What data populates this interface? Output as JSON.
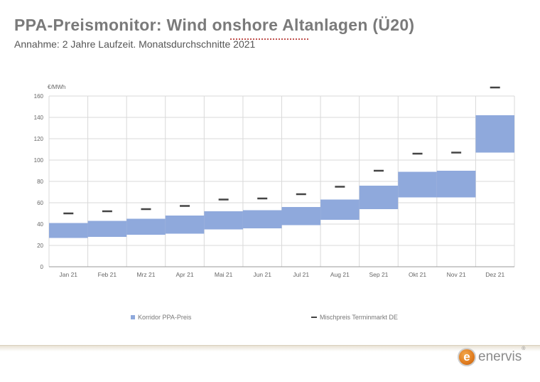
{
  "header": {
    "title": "PPA-Preismonitor: Wind onshore Altanlagen (Ü20)",
    "subtitle": "Annahme: 2 Jahre Laufzeit. Monatsdurchschnitte 2021"
  },
  "colors": {
    "band": "#8fa9dc",
    "marker": "#444444",
    "grid": "#d9d9d9"
  },
  "chart_data": {
    "type": "bar",
    "title": "",
    "ylabel": "€/MWh",
    "xlabel": "",
    "ylim": [
      0,
      160
    ],
    "yticks": [
      0,
      20,
      40,
      60,
      80,
      100,
      120,
      140,
      160
    ],
    "grid": true,
    "legend_position": "bottom",
    "categories": [
      "Jan 21",
      "Feb 21",
      "Mrz 21",
      "Apr 21",
      "Mai 21",
      "Jun 21",
      "Jul 21",
      "Aug 21",
      "Sep 21",
      "Okt 21",
      "Nov 21",
      "Dez 21"
    ],
    "series": [
      {
        "name": "Korridor PPA-Preis",
        "kind": "range",
        "low": [
          27,
          28,
          30,
          31,
          35,
          36,
          39,
          44,
          54,
          65,
          65,
          107
        ],
        "high": [
          41,
          43,
          45,
          48,
          52,
          53,
          56,
          63,
          76,
          89,
          90,
          142
        ]
      },
      {
        "name": "Mischpreis Terminmarkt DE",
        "kind": "marker",
        "values": [
          50,
          52,
          54,
          57,
          63,
          64,
          68,
          75,
          90,
          106,
          107,
          168
        ]
      }
    ]
  },
  "logo": {
    "mark": "e",
    "text": "enervis",
    "reg": "®"
  }
}
